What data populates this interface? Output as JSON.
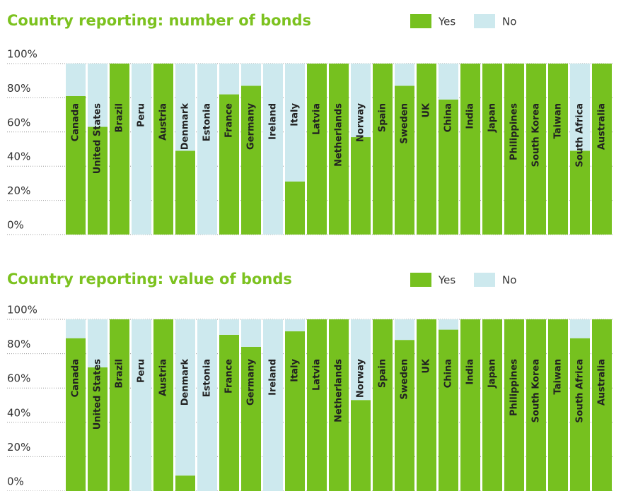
{
  "chart_data": [
    {
      "type": "stacked_bar",
      "title": "Country reporting: number of bonds",
      "categories": [
        "Canada",
        "United States",
        "Brazil",
        "Peru",
        "Austria",
        "Denmark",
        "Estonia",
        "France",
        "Germany",
        "Ireland",
        "Italy",
        "Latvia",
        "Netherlands",
        "Norway",
        "Spain",
        "Sweden",
        "UK",
        "China",
        "India",
        "Japan",
        "Philippines",
        "South Korea",
        "Taiwan",
        "South Africa",
        "Australia"
      ],
      "series": [
        {
          "name": "Yes",
          "color": "#76c11f",
          "values": [
            81,
            63,
            100,
            0,
            100,
            49,
            0,
            82,
            87,
            0,
            31,
            100,
            100,
            57,
            100,
            87,
            100,
            79,
            100,
            100,
            100,
            100,
            100,
            49,
            100
          ]
        },
        {
          "name": "No",
          "color": "#cde9ee",
          "values": [
            19,
            37,
            0,
            100,
            0,
            51,
            100,
            18,
            13,
            100,
            69,
            0,
            0,
            43,
            0,
            13,
            0,
            21,
            0,
            0,
            0,
            0,
            0,
            51,
            0
          ]
        }
      ],
      "ylim": [
        0,
        100
      ],
      "yticks": [
        {
          "value": 0,
          "label": "0%"
        },
        {
          "value": 20,
          "label": "20%"
        },
        {
          "value": 40,
          "label": "40%"
        },
        {
          "value": 60,
          "label": "60%"
        },
        {
          "value": 80,
          "label": "80%"
        },
        {
          "value": 100,
          "label": "100%"
        }
      ],
      "grid": true
    },
    {
      "type": "stacked_bar",
      "title": "Country reporting: value of bonds",
      "categories": [
        "Canada",
        "United States",
        "Brazil",
        "Peru",
        "Austria",
        "Denmark",
        "Estonia",
        "France",
        "Germany",
        "Ireland",
        "Italy",
        "Latvia",
        "Netherlands",
        "Norway",
        "Spain",
        "Sweden",
        "UK",
        "China",
        "India",
        "Japan",
        "Philippines",
        "South Korea",
        "Taiwan",
        "South Africa",
        "Australia"
      ],
      "series": [
        {
          "name": "Yes",
          "color": "#76c11f",
          "values": [
            89,
            72,
            100,
            0,
            100,
            9,
            0,
            91,
            84,
            0,
            93,
            100,
            100,
            53,
            100,
            88,
            100,
            94,
            100,
            100,
            100,
            100,
            100,
            89,
            100
          ]
        },
        {
          "name": "No",
          "color": "#cde9ee",
          "values": [
            11,
            28,
            0,
            100,
            0,
            91,
            100,
            9,
            16,
            100,
            7,
            0,
            0,
            47,
            0,
            12,
            0,
            6,
            0,
            0,
            0,
            0,
            0,
            11,
            0
          ]
        }
      ],
      "ylim": [
        0,
        100
      ],
      "yticks": [
        {
          "value": 0,
          "label": "0%"
        },
        {
          "value": 20,
          "label": "20%"
        },
        {
          "value": 40,
          "label": "40%"
        },
        {
          "value": 60,
          "label": "60%"
        },
        {
          "value": 80,
          "label": "80%"
        },
        {
          "value": 100,
          "label": "100%"
        }
      ],
      "grid": true
    }
  ]
}
